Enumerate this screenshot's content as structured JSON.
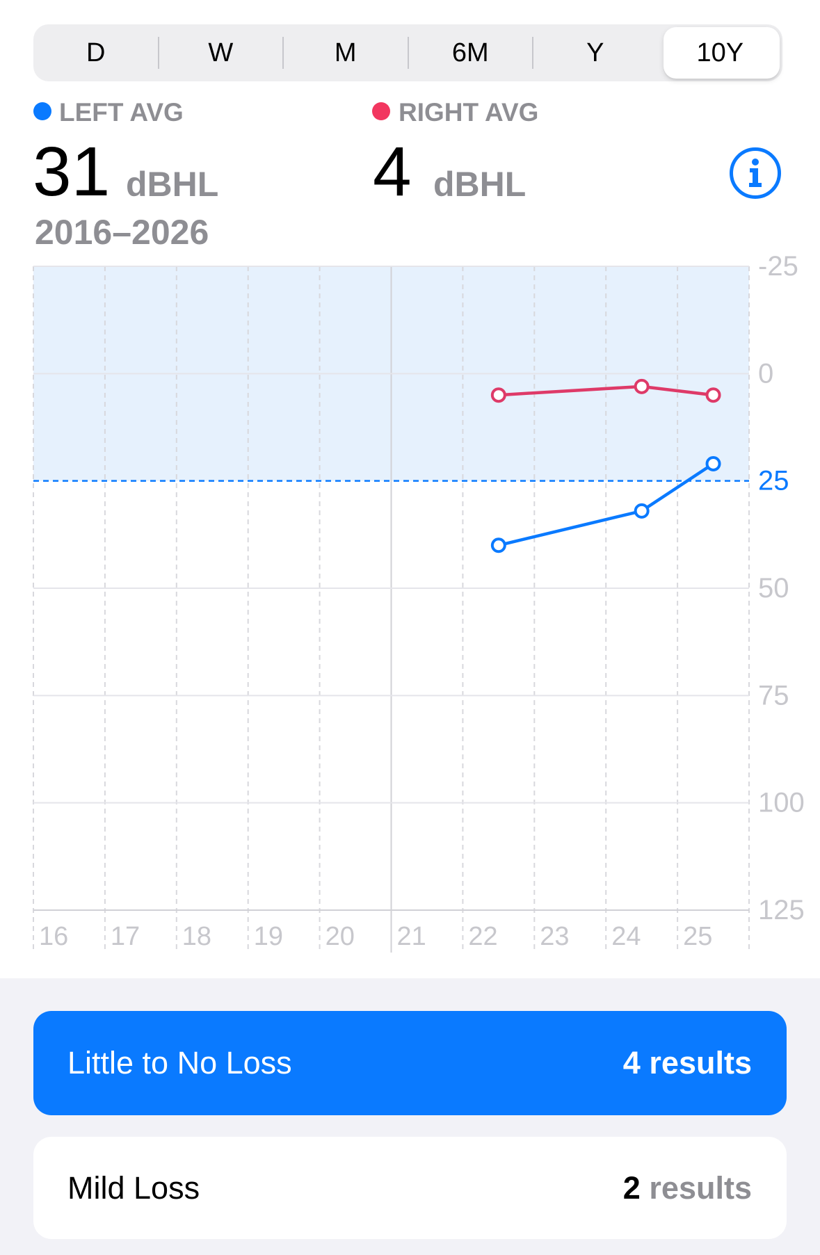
{
  "segmented_control": {
    "items": [
      "D",
      "W",
      "M",
      "6M",
      "Y",
      "10Y"
    ],
    "selected_index": 5
  },
  "summary": {
    "left": {
      "label": "LEFT AVG",
      "value": "31",
      "unit": "dBHL",
      "dot_color": "#0A7AFF"
    },
    "right": {
      "label": "RIGHT AVG",
      "value": "4",
      "unit": "dBHL",
      "dot_color": "#F2365F"
    },
    "date_range": "2016–2026",
    "info_icon": "info-circle-icon"
  },
  "chart_data": {
    "type": "line",
    "xlim": [
      16,
      26
    ],
    "x_ticks": [
      16,
      17,
      18,
      19,
      20,
      21,
      22,
      23,
      24,
      25
    ],
    "x_tick_labels": [
      "16",
      "17",
      "18",
      "19",
      "20",
      "21",
      "22",
      "23",
      "24",
      "25"
    ],
    "ylim": [
      -25,
      125
    ],
    "y_axis_inverted": true,
    "y_axis_side": "right",
    "y_ticks": [
      -25,
      0,
      25,
      50,
      75,
      100,
      125
    ],
    "y_tick_labels": [
      "-25",
      "0",
      "25",
      "50",
      "75",
      "100",
      "125"
    ],
    "grid": true,
    "solid_vertical_gridline_at": 21,
    "normal_range_band": {
      "from": -25,
      "to": 25,
      "color": "#E6F1FD"
    },
    "threshold_line": {
      "y": 25,
      "style": "dashed",
      "color": "#0A7AFF"
    },
    "series": [
      {
        "color": "#0A7AFF",
        "x": [
          22.5,
          24.5,
          25.5
        ],
        "y": [
          40,
          32,
          21
        ]
      },
      {
        "color": "#DE3A68",
        "x": [
          22.5,
          24.5,
          25.5
        ],
        "y": [
          5,
          3,
          5
        ]
      }
    ]
  },
  "result_categories": [
    {
      "label": "Little to No Loss",
      "count": "4",
      "count_suffix": "results",
      "selected": true
    },
    {
      "label": "Mild Loss",
      "count": "2",
      "count_suffix": "results",
      "selected": false
    }
  ],
  "colors": {
    "accent": "#0A7AFF",
    "secondary_label": "#8E8E93",
    "grouped_background": "#F2F2F7"
  }
}
